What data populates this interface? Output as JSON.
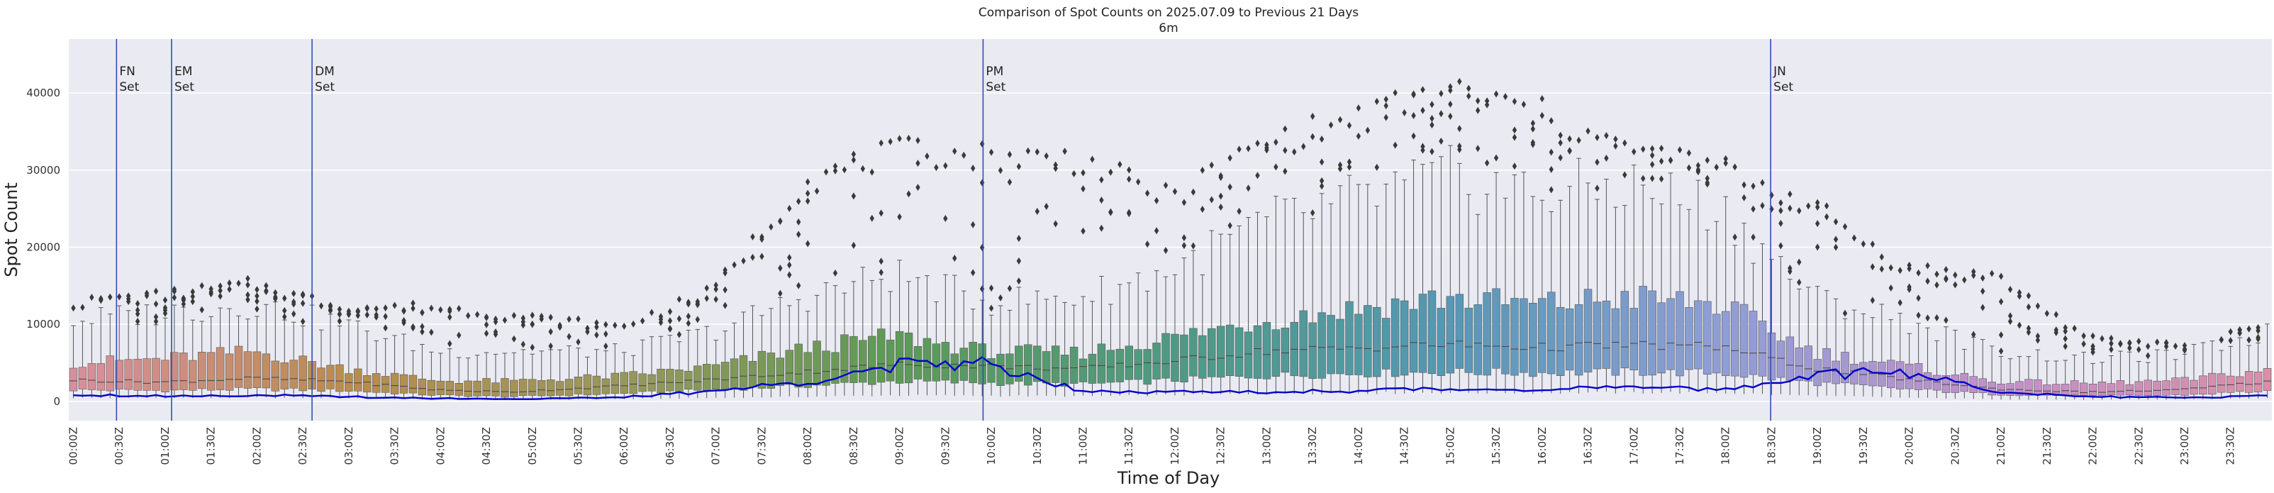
{
  "chart_data": {
    "type": "box",
    "title": "Comparison of Spot Counts on 2025.07.09 to Previous 21 Days",
    "subtitle": "6m",
    "xlabel": "Time of Day",
    "ylabel": "Spot Count",
    "ylim": [
      -2500,
      47000
    ],
    "yticks": [
      0,
      10000,
      20000,
      30000,
      40000
    ],
    "ytick_labels": [
      "0",
      "10000",
      "20000",
      "30000",
      "40000"
    ],
    "bin_minutes": 6,
    "num_bins": 240,
    "xtick_labels": [
      "00:00Z",
      "00:30Z",
      "01:00Z",
      "01:30Z",
      "02:00Z",
      "02:30Z",
      "03:00Z",
      "03:30Z",
      "04:00Z",
      "04:30Z",
      "05:00Z",
      "05:30Z",
      "06:00Z",
      "06:30Z",
      "07:00Z",
      "07:30Z",
      "08:00Z",
      "08:30Z",
      "09:00Z",
      "09:30Z",
      "10:00Z",
      "10:30Z",
      "11:00Z",
      "11:30Z",
      "12:00Z",
      "12:30Z",
      "13:00Z",
      "13:30Z",
      "14:00Z",
      "14:30Z",
      "15:00Z",
      "15:30Z",
      "16:00Z",
      "16:30Z",
      "17:00Z",
      "17:30Z",
      "18:00Z",
      "18:30Z",
      "19:00Z",
      "19:30Z",
      "20:00Z",
      "20:30Z",
      "21:00Z",
      "21:30Z",
      "22:00Z",
      "22:30Z",
      "23:00Z",
      "23:30Z"
    ],
    "events": [
      {
        "label1": "FN",
        "label2": "Set",
        "bin": 5.2
      },
      {
        "label1": "EM",
        "label2": "Set",
        "bin": 11.2
      },
      {
        "label1": "DM",
        "label2": "Set",
        "bin": 26.5
      },
      {
        "label1": "PM",
        "label2": "Set",
        "bin": 99.6
      },
      {
        "label1": "JN",
        "label2": "Set",
        "bin": 185.4
      }
    ],
    "profile_hours": [
      0,
      1,
      2,
      3,
      4,
      4.8,
      6,
      7,
      8,
      9,
      10,
      11,
      12,
      13,
      14,
      15,
      16,
      17,
      18,
      19,
      20,
      21,
      22,
      23,
      24
    ],
    "median_profile": [
      2800,
      2500,
      3000,
      2600,
      1500,
      1200,
      2000,
      2800,
      3800,
      4800,
      4600,
      4200,
      5200,
      6500,
      6900,
      7400,
      7000,
      7300,
      7100,
      4300,
      2900,
      1600,
      1200,
      1500,
      2600
    ],
    "q1_profile": [
      1500,
      1400,
      1600,
      1400,
      800,
      600,
      1000,
      1500,
      2000,
      2600,
      2400,
      2200,
      2700,
      3300,
      3600,
      3800,
      3700,
      3800,
      3700,
      2400,
      1600,
      900,
      700,
      800,
      1400
    ],
    "q3_profile": [
      5000,
      5500,
      6500,
      4300,
      2700,
      2600,
      3300,
      4500,
      6800,
      8500,
      6500,
      6300,
      8200,
      10500,
      12000,
      13500,
      12500,
      13500,
      12500,
      6500,
      4600,
      2600,
      2300,
      2700,
      4200
    ],
    "whisker_hi_profile": [
      10500,
      11500,
      12500,
      10000,
      6500,
      6500,
      6500,
      9000,
      13500,
      16500,
      13000,
      13500,
      17000,
      23000,
      26000,
      29000,
      27000,
      28000,
      25000,
      13500,
      10500,
      6500,
      5500,
      6000,
      9000
    ],
    "outlier_hi_profile": [
      12500,
      13500,
      15000,
      12000,
      12000,
      11000,
      9500,
      14000,
      28000,
      32000,
      31500,
      31000,
      26000,
      33000,
      36000,
      40000,
      37000,
      32000,
      30000,
      25000,
      17000,
      16000,
      8000,
      7000,
      10000
    ],
    "current_day_profile": [
      900,
      700,
      800,
      600,
      400,
      300,
      500,
      1300,
      2500,
      4600,
      5000,
      1500,
      1200,
      1200,
      1400,
      1600,
      1600,
      1800,
      1500,
      3400,
      3800,
      1300,
      600,
      500,
      700
    ],
    "palette_hours": [
      0,
      3,
      6,
      9,
      12,
      15,
      18,
      21,
      24
    ],
    "palette_colors": [
      "#d98f9e",
      "#b98c4e",
      "#99975a",
      "#5d9a57",
      "#4e9a82",
      "#5598b4",
      "#8f9ed6",
      "#c38fcb",
      "#d98fa7"
    ],
    "current_line_color": "#0000cc",
    "event_line_color": "#3050b0"
  }
}
